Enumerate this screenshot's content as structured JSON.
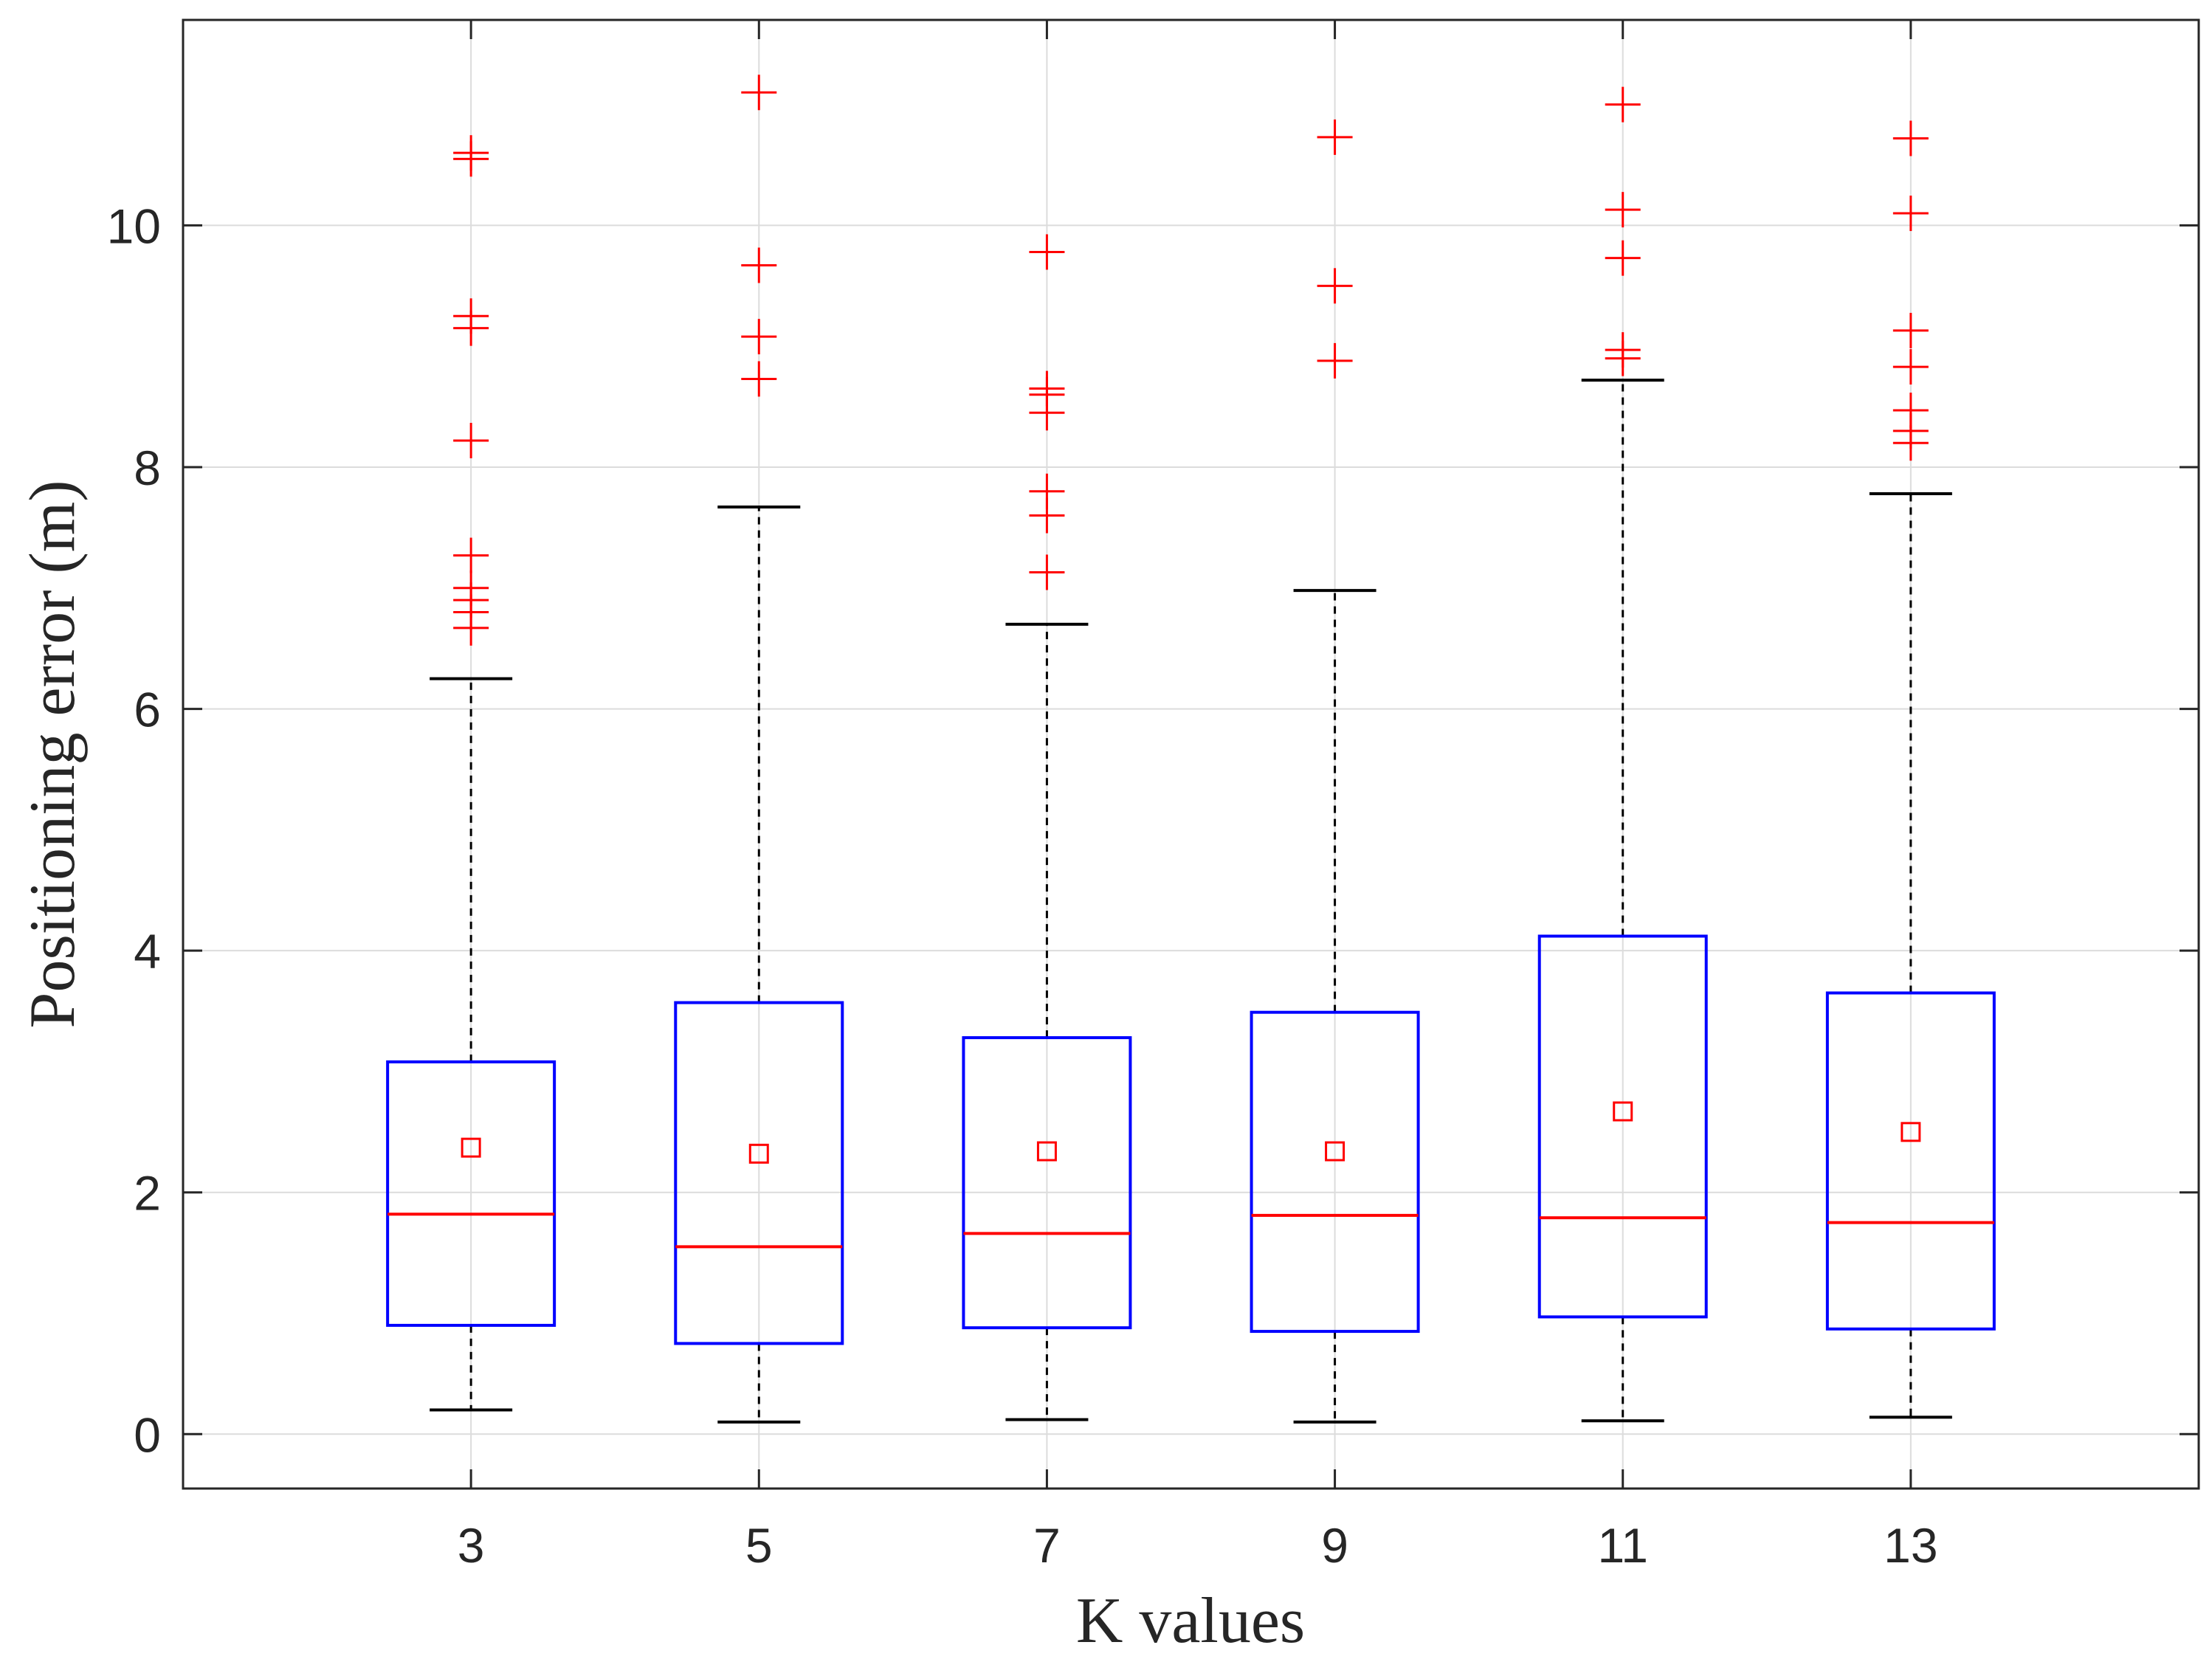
{
  "chart_data": {
    "type": "box",
    "title": "",
    "xlabel": "K values",
    "ylabel": "Positioning error (m)",
    "ylim": [
      -0.45,
      11.7
    ],
    "yticks": [
      0,
      2,
      4,
      6,
      8,
      10
    ],
    "grid": true,
    "legend": "none",
    "categories": [
      "3",
      "5",
      "7",
      "9",
      "11",
      "13"
    ],
    "boxes": [
      {
        "category": "3",
        "whisker_low": 0.2,
        "q1": 0.9,
        "median": 1.82,
        "q3": 3.08,
        "whisker_high": 6.25,
        "mean": 2.37,
        "outliers": [
          6.67,
          6.8,
          6.9,
          7.0,
          7.27,
          8.22,
          9.15,
          9.25,
          10.55,
          10.6
        ]
      },
      {
        "category": "5",
        "whisker_low": 0.1,
        "q1": 0.75,
        "median": 1.55,
        "q3": 3.57,
        "whisker_high": 7.67,
        "mean": 2.32,
        "outliers": [
          8.73,
          9.08,
          9.67,
          11.1
        ]
      },
      {
        "category": "7",
        "whisker_low": 0.12,
        "q1": 0.88,
        "median": 1.66,
        "q3": 3.28,
        "whisker_high": 6.7,
        "mean": 2.34,
        "outliers": [
          7.13,
          7.6,
          7.8,
          8.45,
          8.6,
          8.65,
          9.78
        ]
      },
      {
        "category": "9",
        "whisker_low": 0.1,
        "q1": 0.85,
        "median": 1.81,
        "q3": 3.49,
        "whisker_high": 6.98,
        "mean": 2.34,
        "outliers": [
          8.88,
          9.5,
          10.73
        ]
      },
      {
        "category": "11",
        "whisker_low": 0.11,
        "q1": 0.97,
        "median": 1.79,
        "q3": 4.12,
        "whisker_high": 8.72,
        "mean": 2.67,
        "outliers": [
          8.9,
          8.97,
          9.73,
          10.13,
          11.0
        ]
      },
      {
        "category": "13",
        "whisker_low": 0.14,
        "q1": 0.87,
        "median": 1.75,
        "q3": 3.65,
        "whisker_high": 7.78,
        "mean": 2.5,
        "outliers": [
          8.2,
          8.3,
          8.47,
          8.83,
          9.13,
          10.1,
          10.72
        ]
      }
    ],
    "colors": {
      "box": "#0000ff",
      "median": "#ff0000",
      "mean_marker": "#ff0000",
      "outlier": "#ff0000",
      "whisker": "#000000",
      "grid": "#dcdcdc",
      "axes": "#262626"
    },
    "markers": {
      "outlier": "plus",
      "mean": "square"
    }
  }
}
